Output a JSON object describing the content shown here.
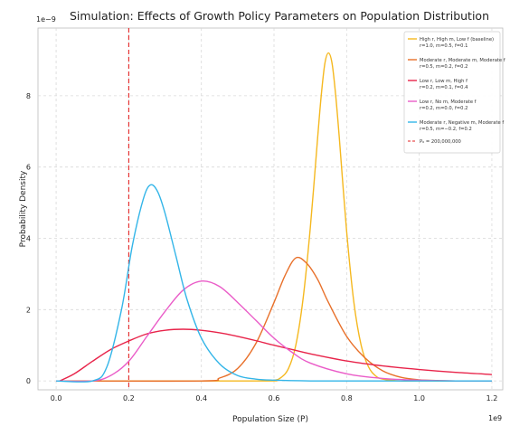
{
  "chart_data": {
    "type": "line",
    "title": "Simulation: Effects of Growth Policy Parameters on Population Distribution",
    "xlabel": "Population Size (P)",
    "ylabel": "Probability Density",
    "x_offset_label": "1e9",
    "y_offset_label": "1e−9",
    "xlim": [
      -0.05,
      1.23
    ],
    "ylim": [
      -0.25,
      9.9
    ],
    "xticks": [
      0.0,
      0.2,
      0.4,
      0.6,
      0.8,
      1.0,
      1.2
    ],
    "xtick_labels": [
      "0.0",
      "0.2",
      "0.4",
      "0.6",
      "0.8",
      "1.0",
      "1.2"
    ],
    "yticks": [
      0,
      2,
      4,
      6,
      8
    ],
    "ytick_labels": [
      "0",
      "2",
      "4",
      "6",
      "8"
    ],
    "grid": true,
    "legend_position": "top-right",
    "series": [
      {
        "name": "High r, High m, Low f (baseline)",
        "params": "r=1.0, m=0.5, f=0.1",
        "color": "#f5b81f",
        "x": [
          0.0,
          0.55,
          0.6,
          0.62,
          0.64,
          0.66,
          0.68,
          0.7,
          0.72,
          0.73,
          0.74,
          0.75,
          0.76,
          0.77,
          0.78,
          0.8,
          0.82,
          0.84,
          0.86,
          0.88,
          0.9,
          0.95,
          1.0,
          1.2
        ],
        "values": [
          0.0,
          0.0,
          0.02,
          0.1,
          0.35,
          1.0,
          2.3,
          4.3,
          6.8,
          8.0,
          8.9,
          9.2,
          8.9,
          8.0,
          6.8,
          4.2,
          2.2,
          1.0,
          0.4,
          0.14,
          0.05,
          0.0,
          0.0,
          0.0
        ]
      },
      {
        "name": "Moderate r, Moderate m, Moderate f",
        "params": "r=0.5, m=0.2, f=0.2",
        "color": "#e8702a",
        "x": [
          0.0,
          0.4,
          0.45,
          0.5,
          0.55,
          0.6,
          0.63,
          0.66,
          0.69,
          0.72,
          0.75,
          0.8,
          0.85,
          0.9,
          0.95,
          1.0,
          1.05,
          1.1,
          1.2
        ],
        "values": [
          0.0,
          0.0,
          0.08,
          0.35,
          1.05,
          2.2,
          2.95,
          3.45,
          3.3,
          2.85,
          2.2,
          1.25,
          0.65,
          0.28,
          0.1,
          0.03,
          0.01,
          0.0,
          0.0
        ]
      },
      {
        "name": "Low r, Low m, High f",
        "params": "r=0.2, m=0.1, f=0.4",
        "color": "#e8244a",
        "x": [
          0.01,
          0.05,
          0.1,
          0.15,
          0.2,
          0.25,
          0.3,
          0.35,
          0.4,
          0.45,
          0.5,
          0.55,
          0.6,
          0.65,
          0.7,
          0.8,
          0.9,
          1.0,
          1.1,
          1.2
        ],
        "values": [
          0.0,
          0.2,
          0.55,
          0.88,
          1.12,
          1.32,
          1.42,
          1.45,
          1.42,
          1.35,
          1.25,
          1.13,
          1.0,
          0.88,
          0.76,
          0.56,
          0.42,
          0.32,
          0.24,
          0.18
        ]
      },
      {
        "name": "Low r, No m, Moderate f",
        "params": "r=0.2, m=0.0, f=0.2",
        "color": "#ea5cc8",
        "x": [
          0.0,
          0.1,
          0.15,
          0.2,
          0.25,
          0.3,
          0.35,
          0.4,
          0.45,
          0.5,
          0.55,
          0.6,
          0.65,
          0.7,
          0.8,
          0.9,
          1.0,
          1.1,
          1.2
        ],
        "values": [
          0.0,
          0.0,
          0.15,
          0.55,
          1.25,
          1.95,
          2.55,
          2.8,
          2.65,
          2.2,
          1.7,
          1.2,
          0.8,
          0.5,
          0.2,
          0.07,
          0.02,
          0.0,
          0.0
        ]
      },
      {
        "name": "Moderate r, Negative m, Moderate f",
        "params": "r=0.5, m=−0.2, f=0.2",
        "color": "#33b5e8",
        "x": [
          0.0,
          0.1,
          0.14,
          0.18,
          0.21,
          0.24,
          0.26,
          0.28,
          0.3,
          0.33,
          0.36,
          0.4,
          0.45,
          0.5,
          0.55,
          0.6,
          0.7,
          0.8,
          1.0,
          1.2
        ],
        "values": [
          0.0,
          0.0,
          0.4,
          2.0,
          3.8,
          5.1,
          5.5,
          5.3,
          4.7,
          3.5,
          2.3,
          1.2,
          0.48,
          0.15,
          0.05,
          0.02,
          0.0,
          0.0,
          0.0,
          0.0
        ]
      }
    ],
    "reference_line": {
      "label": "P₀ = 200,000,000",
      "x": 0.2,
      "color": "#e32424"
    }
  }
}
